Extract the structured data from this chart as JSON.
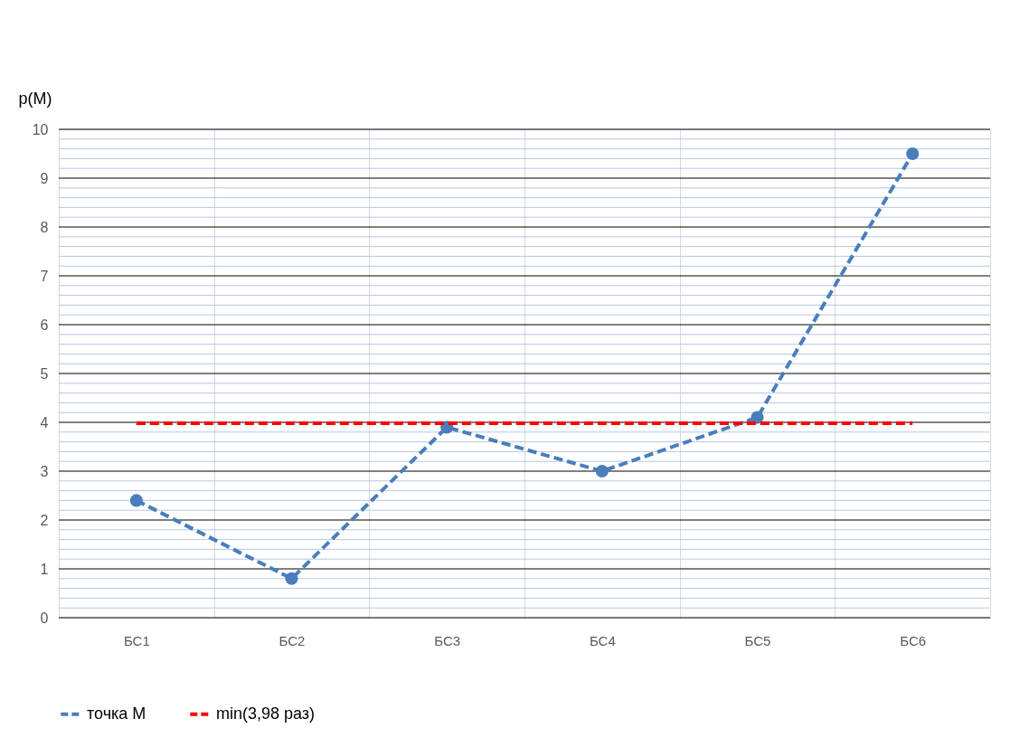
{
  "chart_data": {
    "type": "line",
    "ylabel": "p(M)",
    "categories": [
      "БС1",
      "БС2",
      "БС3",
      "БС4",
      "БС5",
      "БС6"
    ],
    "series": [
      {
        "name": "точка M",
        "color": "#4a7ebb",
        "values": [
          2.4,
          0.8,
          3.9,
          3.0,
          4.1,
          9.5
        ],
        "marker": "circle",
        "line_style": "dashed"
      },
      {
        "name": "min(3,98 раз)",
        "color": "#ff0000",
        "values": [
          3.98,
          3.98,
          3.98,
          3.98,
          3.98,
          3.98
        ],
        "marker": "none",
        "line_style": "dashed"
      }
    ],
    "ylim": [
      0,
      10
    ],
    "yticks": [
      0,
      {
        "value": 0.2,
        "label": null
      },
      {
        "value": 0.4,
        "label": null
      },
      {
        "value": 0.6,
        "label": null
      },
      {
        "value": 0.8,
        "label": null
      },
      1,
      {
        "value": 1.2,
        "label": null
      },
      {
        "value": 1.4,
        "label": null
      },
      {
        "value": 1.6,
        "label": null
      },
      {
        "value": 1.8,
        "label": null
      },
      2,
      {
        "value": 2.2,
        "label": null
      },
      {
        "value": 2.4,
        "label": null
      },
      {
        "value": 2.6,
        "label": null
      },
      {
        "value": 2.8,
        "label": null
      },
      3,
      {
        "value": 3.2,
        "label": null
      },
      {
        "value": 3.4,
        "label": null
      },
      {
        "value": 3.6,
        "label": null
      },
      {
        "value": 3.8,
        "label": null
      },
      4,
      {
        "value": 4.2,
        "label": null
      },
      {
        "value": 4.4,
        "label": null
      },
      {
        "value": 4.6,
        "label": null
      },
      {
        "value": 4.8,
        "label": null
      },
      5,
      {
        "value": 5.2,
        "label": null
      },
      {
        "value": 5.4,
        "label": null
      },
      {
        "value": 5.6,
        "label": null
      },
      {
        "value": 5.8,
        "label": null
      },
      6,
      {
        "value": 6.2,
        "label": null
      },
      {
        "value": 6.4,
        "label": null
      },
      {
        "value": 6.6,
        "label": null
      },
      {
        "value": 6.8,
        "label": null
      },
      7,
      {
        "value": 7.2,
        "label": null
      },
      {
        "value": 7.4,
        "label": null
      },
      {
        "value": 7.6,
        "label": null
      },
      {
        "value": 7.8,
        "label": null
      },
      8,
      {
        "value": 8.2,
        "label": null
      },
      {
        "value": 8.4,
        "label": null
      },
      {
        "value": 8.6,
        "label": null
      },
      {
        "value": 8.8,
        "label": null
      },
      9,
      {
        "value": 9.2,
        "label": null
      },
      {
        "value": 9.4,
        "label": null
      },
      {
        "value": 9.6,
        "label": null
      },
      {
        "value": 9.8,
        "label": null
      },
      10
    ],
    "grid": true,
    "legend": "bottom"
  }
}
